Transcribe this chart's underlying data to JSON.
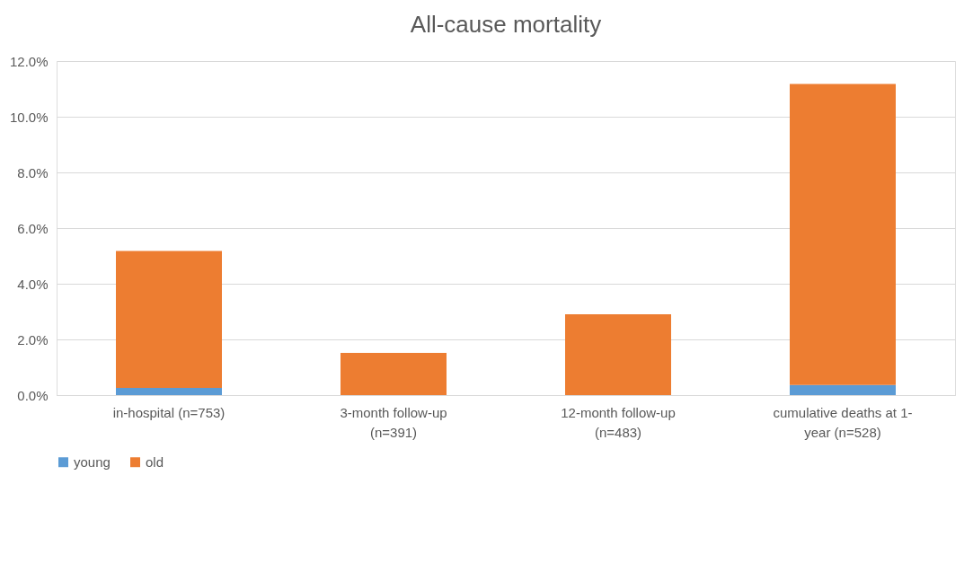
{
  "chart_data": {
    "type": "bar",
    "title": "All-cause mortality",
    "stacked": true,
    "categories": [
      "in-hospital  (n=753)",
      "3-month follow-up\n(n=391)",
      "12-month follow-up\n(n=483)",
      "cumulative deaths at 1-\nyear (n=528)"
    ],
    "series": [
      {
        "name": "young",
        "color": "#5b9bd5",
        "values": [
          0.26,
          0,
          0,
          0.36
        ]
      },
      {
        "name": "old",
        "color": "#ed7d31",
        "values": [
          4.92,
          1.52,
          2.9,
          10.82
        ]
      }
    ],
    "ylim": [
      0,
      12
    ],
    "yticks": [
      {
        "value": 0,
        "label": "0.0%"
      },
      {
        "value": 2,
        "label": "2.0%"
      },
      {
        "value": 4,
        "label": "4.0%"
      },
      {
        "value": 6,
        "label": "6.0%"
      },
      {
        "value": 8,
        "label": "8.0%"
      },
      {
        "value": 10,
        "label": "10.0%"
      },
      {
        "value": 12,
        "label": "12.0%"
      }
    ],
    "grid": "y",
    "legend": "bottom"
  }
}
